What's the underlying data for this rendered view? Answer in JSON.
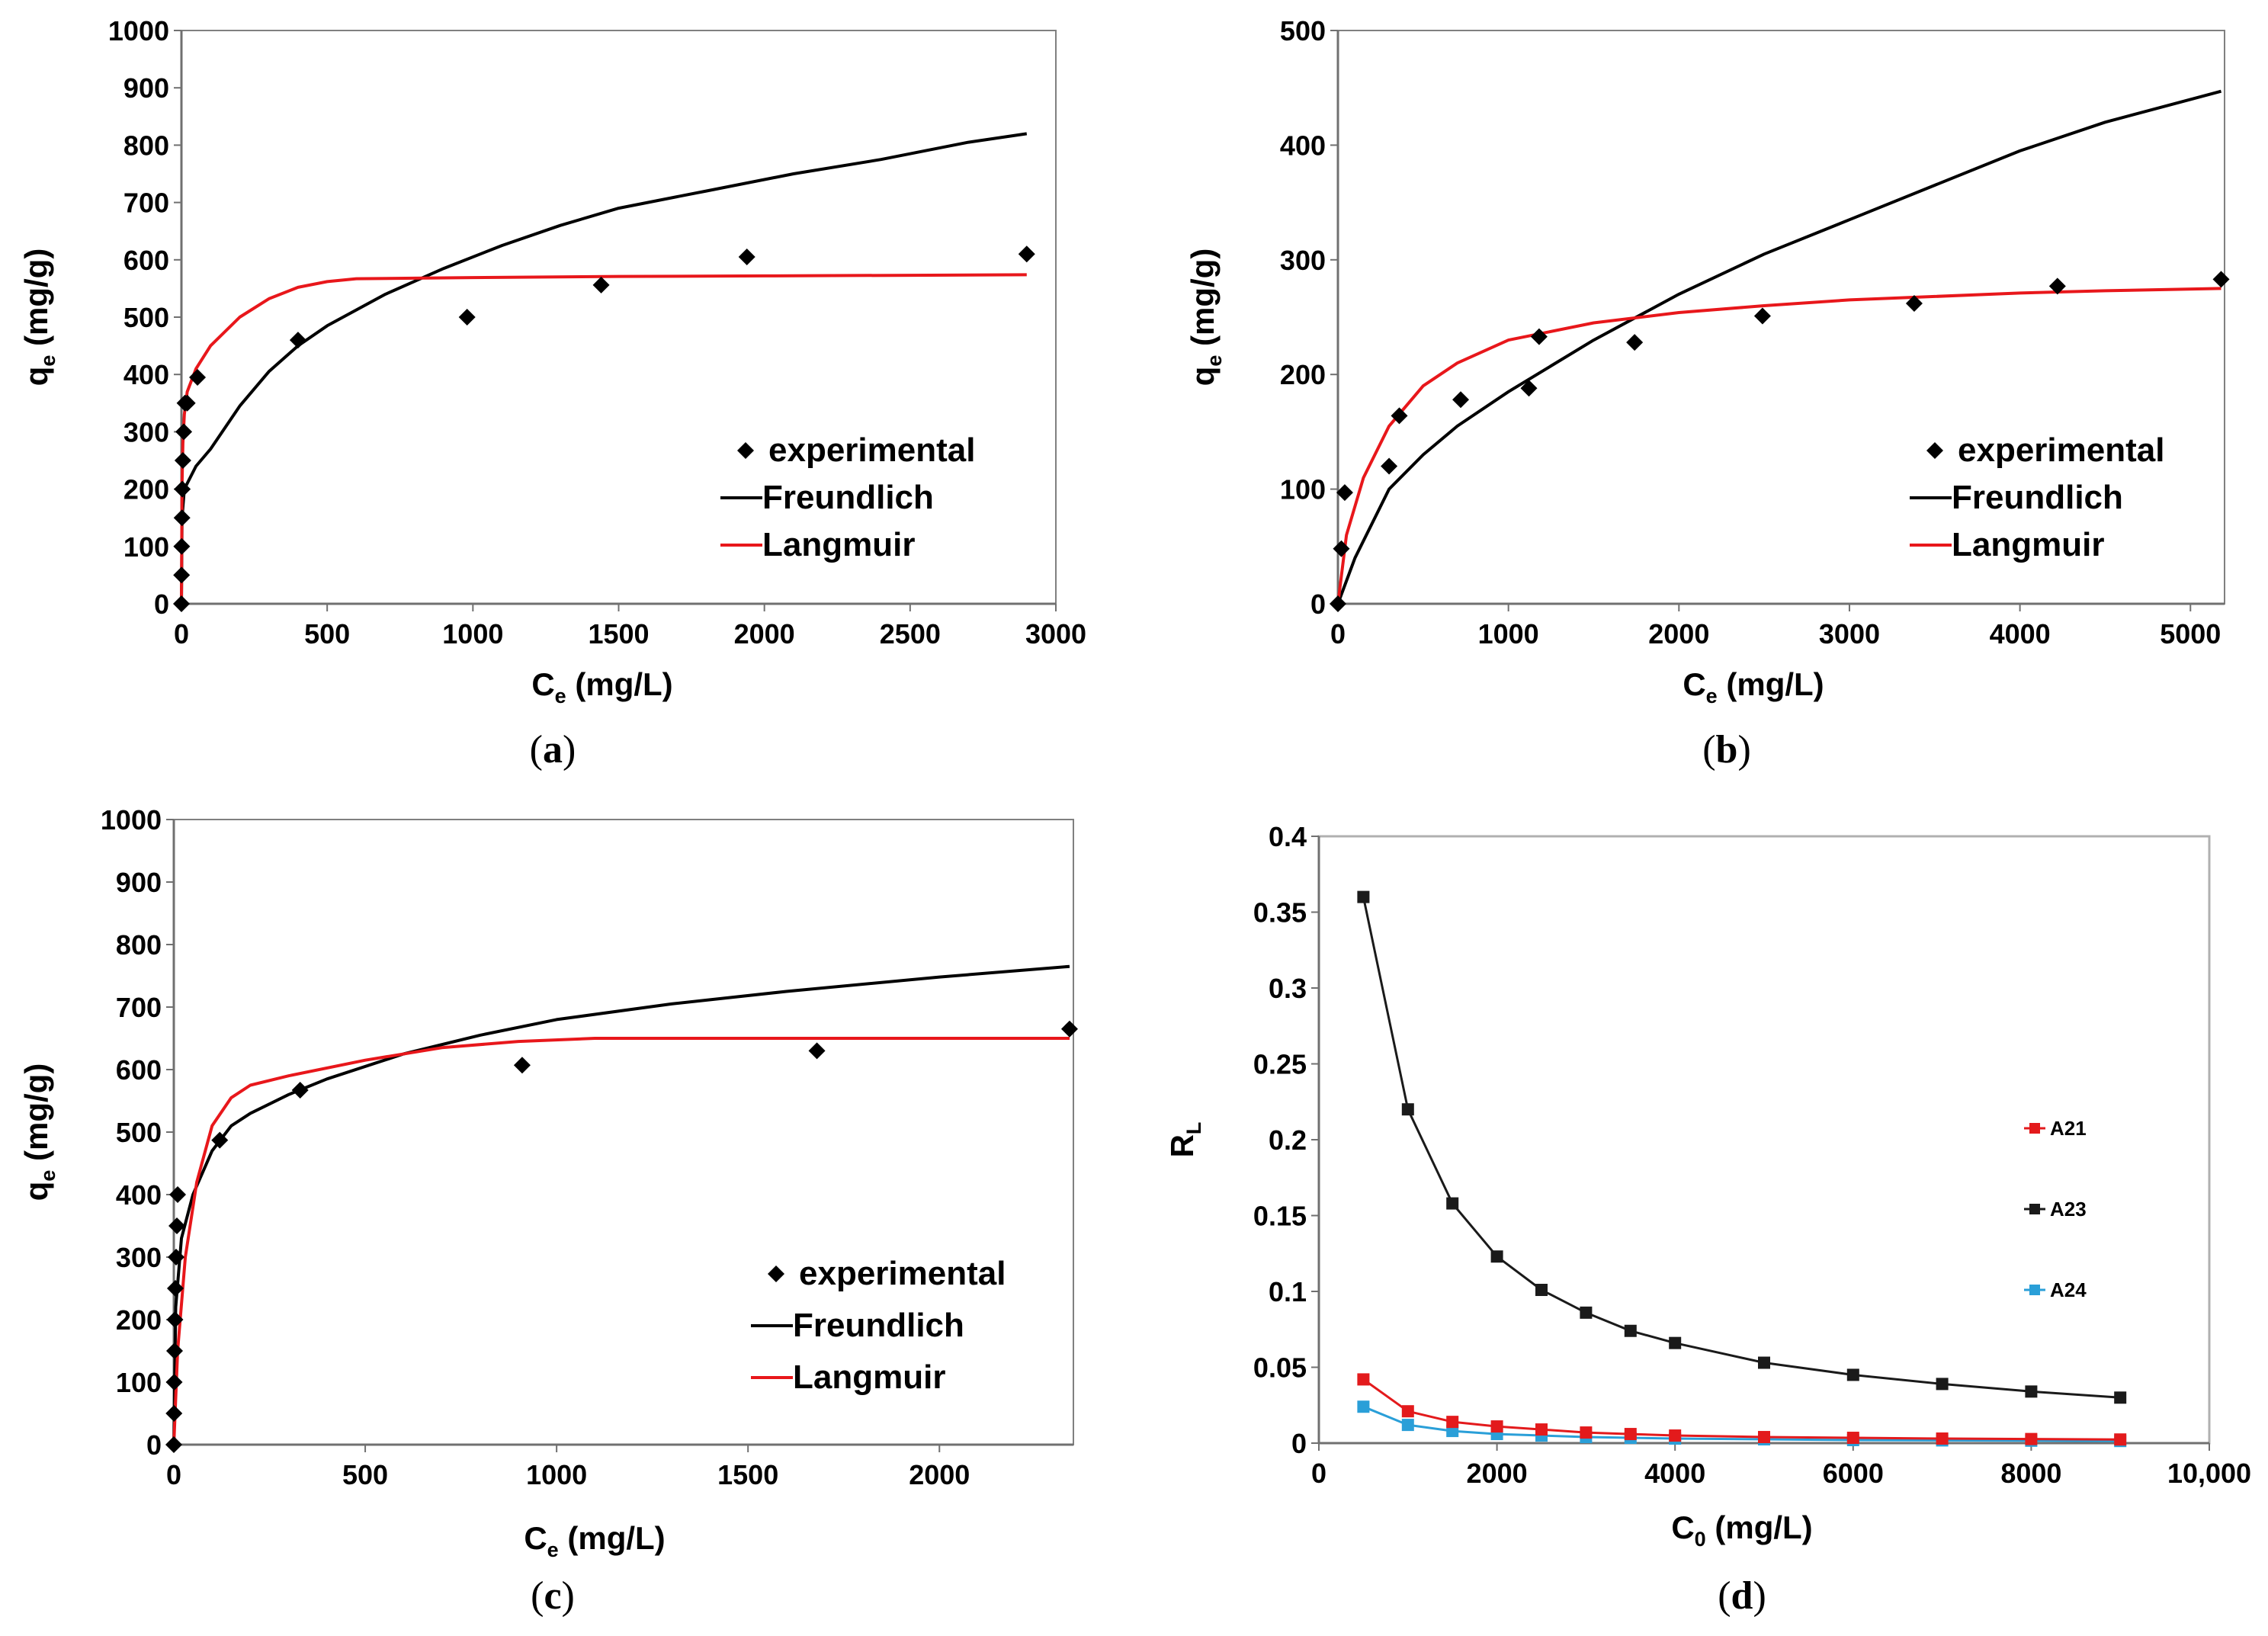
{
  "chart_data": [
    {
      "panel": "a",
      "type": "scatter",
      "caption_open": "(",
      "caption_letter": "a",
      "caption_close": ")",
      "xlabel_main": "C",
      "xlabel_sub": "e",
      "xlabel_unit": " (mg/L)",
      "ylabel_main": "q",
      "ylabel_sub": "e",
      "ylabel_unit": " (mg/g)",
      "xlim": [
        0,
        3000
      ],
      "ylim": [
        0,
        1000
      ],
      "xticks": [
        0,
        500,
        1000,
        1500,
        2000,
        2500,
        3000
      ],
      "xtick_labels": [
        "0",
        "500",
        "1000",
        "1500",
        "2000",
        "2500",
        "3000"
      ],
      "yticks": [
        0,
        100,
        200,
        300,
        400,
        500,
        600,
        700,
        800,
        900,
        1000
      ],
      "ytick_labels": [
        "0",
        "100",
        "200",
        "300",
        "400",
        "500",
        "600",
        "700",
        "800",
        "900",
        "1000"
      ],
      "experimental": {
        "name": "experimental",
        "x": [
          0,
          0.5,
          1,
          2,
          3,
          5,
          8,
          12,
          20,
          55,
          400,
          980,
          1440,
          1940,
          2900
        ],
        "y": [
          0,
          50,
          100,
          150,
          200,
          250,
          300,
          350,
          350,
          395,
          460,
          500,
          556,
          605,
          610
        ]
      },
      "freundlich": {
        "name": "Freundlich",
        "x": [
          0,
          2,
          10,
          50,
          100,
          200,
          300,
          400,
          500,
          700,
          900,
          1100,
          1300,
          1500,
          1800,
          2100,
          2400,
          2700,
          2900
        ],
        "y": [
          0,
          150,
          200,
          240,
          270,
          345,
          405,
          450,
          485,
          540,
          585,
          625,
          660,
          690,
          720,
          750,
          775,
          805,
          820
        ]
      },
      "langmuir": {
        "name": "Langmuir",
        "x": [
          0,
          2,
          5,
          10,
          20,
          50,
          100,
          200,
          300,
          400,
          500,
          600,
          800,
          1000,
          1500,
          2000,
          2500,
          2900
        ],
        "y": [
          0,
          210,
          280,
          330,
          370,
          410,
          450,
          500,
          532,
          552,
          562,
          567,
          568,
          569,
          571,
          572,
          573,
          574
        ]
      },
      "legend_position": "bottom-right"
    },
    {
      "panel": "b",
      "type": "scatter",
      "caption_open": "(",
      "caption_letter": "b",
      "caption_close": ")",
      "xlabel_main": "C",
      "xlabel_sub": "e",
      "xlabel_unit": " (mg/L)",
      "ylabel_main": "q",
      "ylabel_sub": "e",
      "ylabel_unit": " (mg/g)",
      "xlim": [
        0,
        5200
      ],
      "ylim": [
        0,
        500
      ],
      "xticks": [
        0,
        1000,
        2000,
        3000,
        4000,
        5000
      ],
      "xtick_labels": [
        "0",
        "1000",
        "2000",
        "3000",
        "4000",
        "5000"
      ],
      "yticks": [
        0,
        100,
        200,
        300,
        400,
        500
      ],
      "ytick_labels": [
        "0",
        "100",
        "200",
        "300",
        "400",
        "500"
      ],
      "experimental": {
        "name": "experimental",
        "x": [
          0,
          20,
          40,
          300,
          360,
          720,
          1120,
          1180,
          1740,
          2490,
          3380,
          4220,
          5180
        ],
        "y": [
          0,
          48,
          97,
          120,
          164,
          178,
          188,
          233,
          228,
          251,
          262,
          277,
          283
        ]
      },
      "freundlich": {
        "name": "Freundlich",
        "x": [
          0,
          100,
          300,
          500,
          700,
          1000,
          1500,
          2000,
          2500,
          3000,
          3500,
          4000,
          4500,
          5180
        ],
        "y": [
          0,
          40,
          100,
          130,
          155,
          185,
          230,
          270,
          305,
          335,
          365,
          395,
          420,
          447
        ]
      },
      "langmuir": {
        "name": "Langmuir",
        "x": [
          0,
          50,
          150,
          300,
          500,
          700,
          1000,
          1500,
          2000,
          2500,
          3000,
          3500,
          4000,
          4500,
          5180
        ],
        "y": [
          0,
          60,
          110,
          155,
          190,
          210,
          230,
          245,
          254,
          260,
          265,
          268,
          271,
          273,
          275
        ]
      },
      "legend_position": "bottom-right"
    },
    {
      "panel": "c",
      "type": "scatter",
      "caption_open": "(",
      "caption_letter": "c",
      "caption_close": ")",
      "xlabel_main": "C",
      "xlabel_sub": "e",
      "xlabel_unit": " (mg/L)",
      "ylabel_main": "q",
      "ylabel_sub": "e",
      "ylabel_unit": " (mg/g)",
      "xlim": [
        0,
        2350
      ],
      "ylim": [
        0,
        1000
      ],
      "xticks": [
        0,
        500,
        1000,
        1500,
        2000
      ],
      "xtick_labels": [
        "0",
        "500",
        "1000",
        "1500",
        "2000"
      ],
      "yticks": [
        0,
        100,
        200,
        300,
        400,
        500,
        600,
        700,
        800,
        900,
        1000
      ],
      "ytick_labels": [
        "0",
        "100",
        "200",
        "300",
        "400",
        "500",
        "600",
        "700",
        "800",
        "900",
        "1000"
      ],
      "experimental": {
        "name": "experimental",
        "x": [
          0,
          0.5,
          1,
          2,
          3,
          4,
          6,
          8,
          10,
          120,
          330,
          910,
          1680,
          2340
        ],
        "y": [
          0,
          50,
          100,
          150,
          200,
          250,
          300,
          350,
          400,
          487,
          567,
          607,
          630,
          665
        ]
      },
      "freundlich": {
        "name": "Freundlich",
        "x": [
          0,
          5,
          20,
          50,
          100,
          150,
          200,
          300,
          400,
          600,
          800,
          1000,
          1300,
          1600,
          2000,
          2340
        ],
        "y": [
          0,
          220,
          330,
          400,
          470,
          510,
          530,
          560,
          585,
          625,
          655,
          680,
          705,
          725,
          748,
          765
        ]
      },
      "langmuir": {
        "name": "Langmuir",
        "x": [
          0,
          10,
          30,
          60,
          100,
          150,
          200,
          300,
          500,
          700,
          900,
          1100,
          1500,
          2000,
          2340
        ],
        "y": [
          0,
          150,
          300,
          420,
          510,
          555,
          575,
          590,
          615,
          635,
          645,
          650,
          650,
          650,
          650
        ]
      },
      "legend_position": "bottom-right"
    },
    {
      "panel": "d",
      "type": "line",
      "caption_open": "(",
      "caption_letter": "d",
      "caption_close": ")",
      "xlabel_main": "C",
      "xlabel_sub": "0",
      "xlabel_unit": " (mg/L)",
      "ylabel_main": "R",
      "ylabel_sub": "L",
      "ylabel_unit": "",
      "xlim": [
        0,
        10000
      ],
      "ylim": [
        0,
        0.4
      ],
      "xticks": [
        0,
        2000,
        4000,
        6000,
        8000,
        10000
      ],
      "xtick_labels": [
        "0",
        "2000",
        "4000",
        "6000",
        "8000",
        "10,000"
      ],
      "yticks": [
        0,
        0.05,
        0.1,
        0.15,
        0.2,
        0.25,
        0.3,
        0.35,
        0.4
      ],
      "ytick_labels": [
        "0",
        "0.05",
        "0.1",
        "0.15",
        "0.2",
        "0.25",
        "0.3",
        "0.35",
        "0.4"
      ],
      "x": [
        500,
        1000,
        1500,
        2000,
        2500,
        3000,
        3500,
        4000,
        5000,
        6000,
        7000,
        8000,
        9000
      ],
      "series": [
        {
          "name": "A21",
          "color": "#e31a1c",
          "values": [
            0.042,
            0.021,
            0.014,
            0.011,
            0.009,
            0.007,
            0.006,
            0.005,
            0.004,
            0.0035,
            0.003,
            0.0027,
            0.0024
          ]
        },
        {
          "name": "A23",
          "color": "#1a1a1a",
          "values": [
            0.36,
            0.22,
            0.158,
            0.123,
            0.101,
            0.086,
            0.074,
            0.066,
            0.053,
            0.045,
            0.039,
            0.034,
            0.03
          ]
        },
        {
          "name": "A24",
          "color": "#2a9fd8",
          "values": [
            0.024,
            0.012,
            0.008,
            0.006,
            0.005,
            0.004,
            0.0035,
            0.003,
            0.0025,
            0.002,
            0.0018,
            0.0016,
            0.0014
          ]
        }
      ],
      "legend_position": "right"
    }
  ],
  "colors": {
    "freundlich": "#000000",
    "langmuir": "#e8171b",
    "axis": "#808080",
    "frame_d": "#b0b0b0"
  }
}
